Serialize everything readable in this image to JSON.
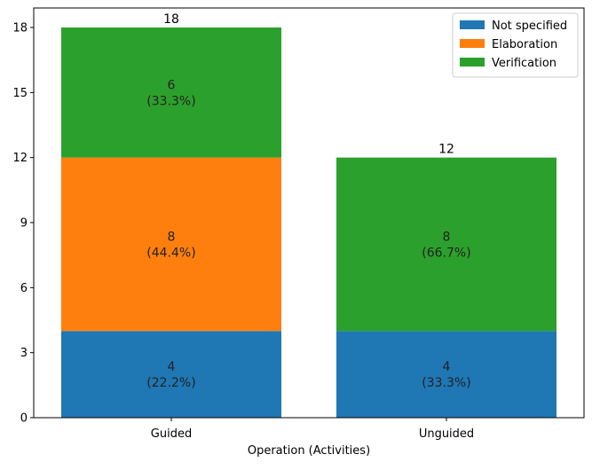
{
  "chart_data": {
    "type": "bar",
    "stacked": true,
    "categories": [
      "Guided",
      "Unguided"
    ],
    "series": [
      {
        "name": "Not specified",
        "values": [
          4,
          4
        ],
        "percent_labels": [
          "(22.2%)",
          "(33.3%)"
        ],
        "color": "#1f77b4"
      },
      {
        "name": "Elaboration",
        "values": [
          8,
          0
        ],
        "percent_labels": [
          "(44.4%)",
          ""
        ],
        "color": "#ff7f0e"
      },
      {
        "name": "Verification",
        "values": [
          6,
          8
        ],
        "percent_labels": [
          "(33.3%)",
          "(66.7%)"
        ],
        "color": "#2ca02c"
      }
    ],
    "totals": [
      18,
      12
    ],
    "xlabel": "Operation (Activities)",
    "ylabel": "",
    "ylim": [
      0,
      18.9
    ],
    "yticks": [
      0,
      3,
      6,
      9,
      12,
      15,
      18
    ],
    "grid": false,
    "legend_position": "top-right"
  }
}
